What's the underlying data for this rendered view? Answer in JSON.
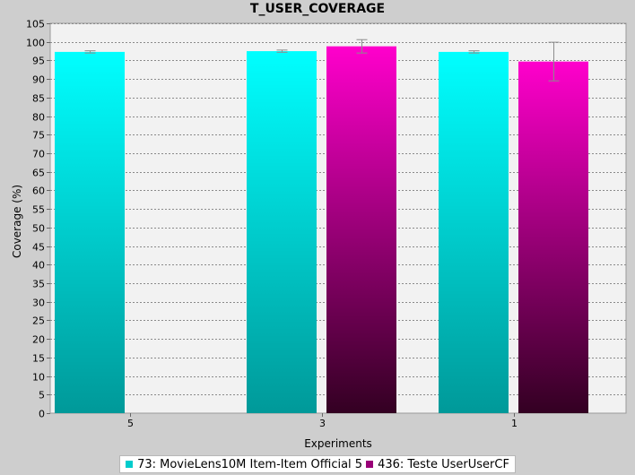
{
  "chart_data": {
    "type": "bar",
    "title": "T_USER_COVERAGE",
    "xlabel": "Experiments",
    "ylabel": "Coverage (%)",
    "categories": [
      "5",
      "3",
      "1"
    ],
    "ylim": [
      0,
      105
    ],
    "yticks": [
      0,
      5,
      10,
      15,
      20,
      25,
      30,
      35,
      40,
      45,
      50,
      55,
      60,
      65,
      70,
      75,
      80,
      85,
      90,
      95,
      100,
      105
    ],
    "grid": true,
    "legend_position": "bottom",
    "series": [
      {
        "name": "73: MovieLens10M Item-Item Official 5",
        "values": [
          97.3,
          97.5,
          97.3
        ],
        "errors": [
          0.3,
          0.3,
          0.3
        ],
        "color_top": "#00ffff",
        "color_bottom": "#009999",
        "legend_color": "#00cccc"
      },
      {
        "name": "436: Teste UserUserCF",
        "values": [
          null,
          98.8,
          94.7
        ],
        "errors": [
          null,
          1.8,
          5.2
        ],
        "color_top": "#ff00cc",
        "color_bottom": "#330022",
        "legend_color": "#990077"
      }
    ],
    "colors": {
      "background": "#cecece",
      "plot_background": "#f2f2f2",
      "gridline": "#8a8a8a",
      "error_bar": "#8c8c8c"
    }
  }
}
